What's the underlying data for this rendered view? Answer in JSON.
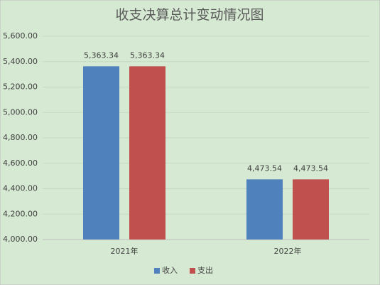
{
  "chart_data": {
    "type": "bar",
    "title": "收支决算总计变动情况图",
    "categories": [
      "2021年",
      "2022年"
    ],
    "series": [
      {
        "name": "收入",
        "color": "#4f81bd",
        "values": [
          5363.34,
          4473.54
        ],
        "value_labels": [
          "5,363.34",
          "4,473.54"
        ]
      },
      {
        "name": "支出",
        "color": "#c0504d",
        "values": [
          5363.34,
          4473.54
        ],
        "value_labels": [
          "5,363.34",
          "4,473.54"
        ]
      }
    ],
    "ylim": [
      4000,
      5600
    ],
    "yticks": [
      {
        "value": 4000,
        "label": "4,000.00"
      },
      {
        "value": 4200,
        "label": "4,200.00"
      },
      {
        "value": 4400,
        "label": "4,400.00"
      },
      {
        "value": 4600,
        "label": "4,600.00"
      },
      {
        "value": 4800,
        "label": "4,800.00"
      },
      {
        "value": 5000,
        "label": "5,000.00"
      },
      {
        "value": 5200,
        "label": "5,200.00"
      },
      {
        "value": 5400,
        "label": "5,400.00"
      },
      {
        "value": 5600,
        "label": "5,600.00"
      }
    ],
    "grid": true,
    "legend": "bottom"
  }
}
